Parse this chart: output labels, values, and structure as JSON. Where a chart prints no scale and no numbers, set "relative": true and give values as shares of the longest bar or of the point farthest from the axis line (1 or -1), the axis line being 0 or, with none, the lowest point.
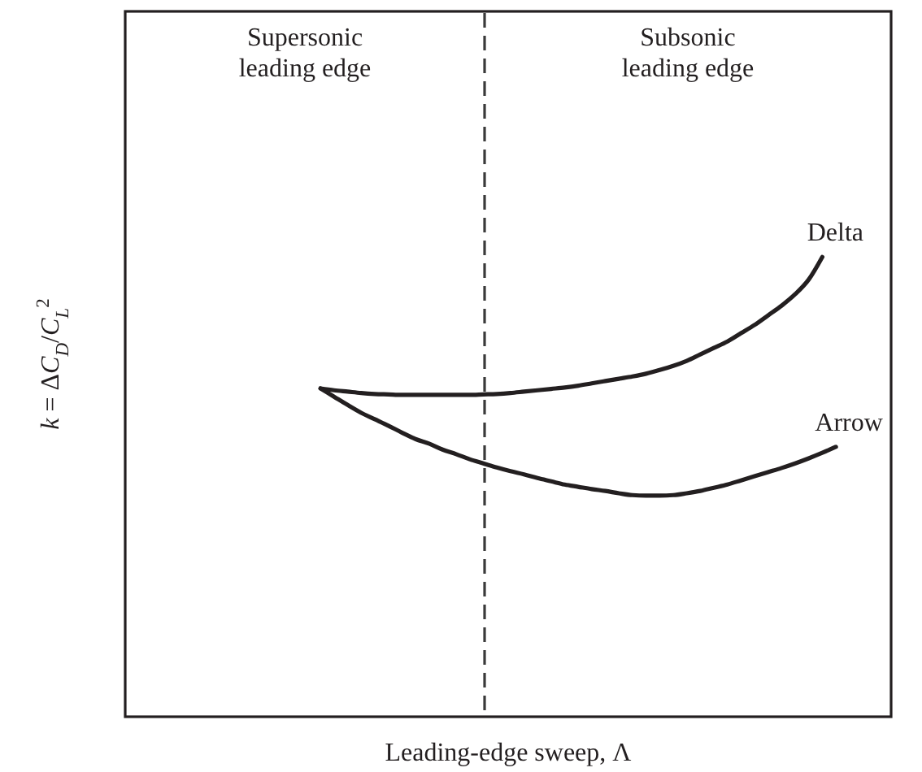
{
  "chart_data": {
    "type": "line",
    "xlabel": "Leading-edge sweep, Λ",
    "ylabel": "k = ΔC$_{D}$/C$_{L}$$^{2}$",
    "relative": true,
    "categories": [
      null,
      null,
      null,
      null,
      null,
      null,
      null,
      null,
      null,
      null,
      null,
      null,
      null,
      null,
      null,
      null,
      null,
      null,
      null,
      null,
      null,
      null,
      null,
      null,
      null,
      null,
      null,
      null,
      null,
      null,
      null,
      null,
      null,
      null,
      null,
      null,
      null,
      null,
      null,
      null,
      null,
      null,
      null,
      null,
      null,
      null,
      null,
      null,
      null,
      null,
      null,
      null,
      null,
      null,
      null,
      null,
      null
    ],
    "series": [
      {
        "name": "Delta",
        "color": "#231f20",
        "values": [
          null,
          null,
          null,
          null,
          null,
          null,
          null,
          null,
          null,
          null,
          null,
          null,
          null,
          null,
          0.714,
          0.71,
          0.707,
          0.704,
          0.702,
          0.701,
          0.7,
          0.7,
          0.7,
          0.7,
          0.7,
          0.7,
          0.701,
          0.702,
          0.704,
          0.707,
          0.71,
          0.713,
          0.716,
          0.72,
          0.725,
          0.73,
          0.735,
          0.74,
          0.746,
          0.754,
          0.763,
          0.774,
          0.788,
          0.802,
          0.816,
          0.834,
          0.852,
          0.873,
          0.894,
          0.919,
          0.951,
          1.0,
          null,
          null,
          null,
          null,
          null
        ]
      },
      {
        "name": "Arrow",
        "color": "#231f20",
        "values": [
          null,
          null,
          null,
          null,
          null,
          null,
          null,
          null,
          null,
          null,
          null,
          null,
          null,
          null,
          0.714,
          0.696,
          0.678,
          0.661,
          0.647,
          0.633,
          0.618,
          0.604,
          0.594,
          0.581,
          0.571,
          0.56,
          0.551,
          0.542,
          0.534,
          0.527,
          0.519,
          0.512,
          0.505,
          0.5,
          0.495,
          0.491,
          0.486,
          0.482,
          0.481,
          0.481,
          0.482,
          0.486,
          0.491,
          0.498,
          0.505,
          0.514,
          0.523,
          0.532,
          0.541,
          0.551,
          0.562,
          0.574,
          0.587,
          null,
          null,
          null,
          null
        ]
      }
    ],
    "annotations": [
      "Supersonic leading edge",
      "Subsonic leading edge"
    ]
  }
}
